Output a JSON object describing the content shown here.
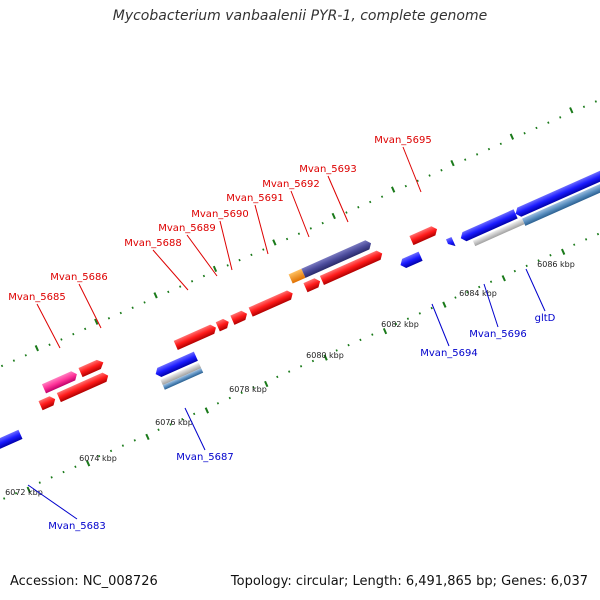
{
  "title": "Mycobacterium vanbaalenii PYR-1, complete genome",
  "footer": {
    "accession": "Accession: NC_008726",
    "info": "Topology: circular; Length: 6,491,865 bp; Genes: 6,037"
  },
  "colors": {
    "forward_gene": "#ff1a1a",
    "reverse_gene": "#1a1aff",
    "rna_pink": "#ff3399",
    "orange": "#ff9900",
    "purple": "#4a4a9a",
    "tick": "#1a7a1a",
    "backbone": "#808080",
    "label_forward": "#dd0000",
    "label_reverse": "#0000cc"
  },
  "tick_labels": [
    "6072 kbp",
    "6074 kbp",
    "6076 kbp",
    "6078 kbp",
    "6080 kbp",
    "6082 kbp",
    "6084 kbp",
    "6086 kbp"
  ],
  "labels_forward": [
    "Mvan_5685",
    "Mvan_5686",
    "Mvan_5688",
    "Mvan_5689",
    "Mvan_5690",
    "Mvan_5691",
    "Mvan_5692",
    "Mvan_5693",
    "Mvan_5695"
  ],
  "labels_reverse": [
    "Mvan_5683",
    "Mvan_5687",
    "Mvan_5694",
    "Mvan_5696",
    "gltD"
  ]
}
